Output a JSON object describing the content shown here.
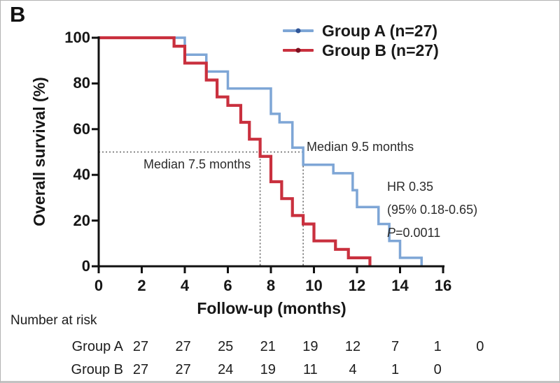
{
  "panel_label": "B",
  "chart_data": {
    "type": "line",
    "subtype": "kaplan-meier-step",
    "title": "",
    "xlabel": "Follow-up (months)",
    "ylabel": "Overall survival (%)",
    "xlim": [
      0,
      16
    ],
    "ylim": [
      0,
      100
    ],
    "x_ticks": [
      0,
      2,
      4,
      6,
      8,
      10,
      12,
      14,
      16
    ],
    "y_ticks": [
      100,
      80,
      60,
      40,
      20,
      0
    ],
    "grid": false,
    "legend_position": "top-right",
    "series": [
      {
        "name": "Group A (n=27)",
        "color": "#7EA6D6",
        "marker_color": "#2F5597",
        "median_months": 9.5,
        "start": [
          0,
          100
        ],
        "steps": [
          [
            4.0,
            92.6
          ],
          [
            5.0,
            85.2
          ],
          [
            6.0,
            77.8
          ],
          [
            8.0,
            66.7
          ],
          [
            8.4,
            63.0
          ],
          [
            9.0,
            51.9
          ],
          [
            9.5,
            44.4
          ],
          [
            10.9,
            40.7
          ],
          [
            11.8,
            33.3
          ],
          [
            12.0,
            25.9
          ],
          [
            13.0,
            18.5
          ],
          [
            13.5,
            11.1
          ],
          [
            14.0,
            3.7
          ],
          [
            15.0,
            0
          ]
        ]
      },
      {
        "name": "Group B (n=27)",
        "color": "#C9303E",
        "marker_color": "#7A1020",
        "median_months": 7.5,
        "start": [
          0,
          100
        ],
        "steps": [
          [
            3.5,
            96.3
          ],
          [
            4.0,
            88.9
          ],
          [
            5.0,
            81.5
          ],
          [
            5.5,
            74.1
          ],
          [
            6.0,
            70.4
          ],
          [
            6.6,
            63.0
          ],
          [
            7.0,
            55.6
          ],
          [
            7.5,
            48.1
          ],
          [
            8.0,
            37.0
          ],
          [
            8.5,
            29.6
          ],
          [
            9.0,
            22.2
          ],
          [
            9.5,
            18.5
          ],
          [
            10.0,
            11.1
          ],
          [
            11.0,
            7.4
          ],
          [
            11.6,
            3.7
          ],
          [
            12.6,
            0
          ]
        ]
      }
    ],
    "reference_lines": {
      "survival_level_pct": 50,
      "median_a_months": 9.5,
      "median_b_months": 7.5,
      "style": "dotted",
      "color": "#666666"
    }
  },
  "legend": {
    "items": [
      {
        "label": "Group A (n=27)",
        "color": "#7EA6D6",
        "marker_color": "#2F5597"
      },
      {
        "label": "Group B (n=27)",
        "color": "#C9303E",
        "marker_color": "#7A1020"
      }
    ]
  },
  "annotations": {
    "median_a": "Median 9.5 months",
    "median_b": "Median 7.5 months",
    "hr": "HR 0.35",
    "ci": "(95% 0.18-0.65)",
    "p_label": "P",
    "p_value": "=0.0011"
  },
  "risk_table": {
    "title": "Number at risk",
    "rows": [
      {
        "label": "Group A",
        "counts": [
          27,
          27,
          25,
          21,
          19,
          12,
          7,
          1,
          0
        ]
      },
      {
        "label": "Group B",
        "counts": [
          27,
          27,
          24,
          19,
          11,
          4,
          1,
          0
        ]
      }
    ]
  }
}
